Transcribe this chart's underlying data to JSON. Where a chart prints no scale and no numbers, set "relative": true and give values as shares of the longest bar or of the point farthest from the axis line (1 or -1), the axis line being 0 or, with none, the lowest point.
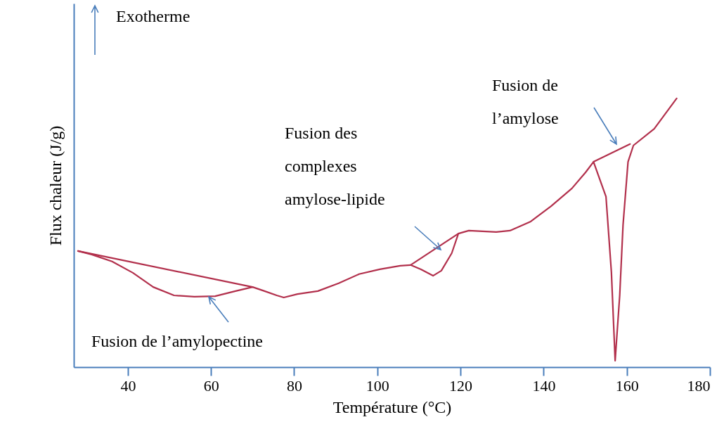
{
  "chart_data": {
    "type": "line",
    "relative": true,
    "xlabel": "Température (°C)",
    "ylabel": "Flux chaleur (J/g)",
    "xlim": [
      27,
      180
    ],
    "xticks": [
      40,
      60,
      80,
      100,
      120,
      140,
      160,
      180
    ],
    "grid": false,
    "marker": "none",
    "line_style": "solid",
    "series": [
      {
        "color": "#b2304c",
        "x": [
          28.0,
          31.3,
          36.2,
          41.2,
          46.1,
          51.1,
          56.0,
          61.0,
          65.9,
          70.0,
          72.5,
          75.8,
          77.5,
          80.8,
          85.7,
          90.7,
          95.6,
          100.6,
          105.5,
          108.0,
          110.5,
          113.4,
          115.4,
          117.9,
          119.5,
          122.0,
          128.6,
          131.9,
          136.9,
          141.8,
          146.8,
          150.1,
          152.0,
          155.0,
          156.3,
          157.2,
          158.3,
          159.1,
          160.3,
          161.6,
          166.6,
          172.0
        ],
        "values": [
          0.432,
          0.419,
          0.393,
          0.351,
          0.298,
          0.267,
          0.262,
          0.264,
          0.283,
          0.298,
          0.285,
          0.267,
          0.259,
          0.272,
          0.283,
          0.312,
          0.346,
          0.364,
          0.377,
          0.38,
          0.364,
          0.34,
          0.359,
          0.424,
          0.497,
          0.508,
          0.503,
          0.508,
          0.542,
          0.599,
          0.665,
          0.725,
          0.764,
          0.634,
          0.353,
          0.024,
          0.267,
          0.529,
          0.764,
          0.825,
          0.887,
          1.0
        ]
      },
      {
        "color": "#b2304c",
        "x": [
          28.0,
          70.0
        ],
        "values": [
          0.432,
          0.298
        ]
      },
      {
        "color": "#b2304c",
        "x": [
          108.0,
          119.5
        ],
        "values": [
          0.38,
          0.497
        ]
      },
      {
        "color": "#b2304c",
        "x": [
          152.0,
          160.8
        ],
        "values": [
          0.764,
          0.83
        ]
      }
    ],
    "annotations": [
      "Exotherme",
      "Fusion de l’amylopectine",
      "Fusion des\ncomplexes\namylose-lipide",
      "Fusion de\nl’amylose"
    ]
  }
}
